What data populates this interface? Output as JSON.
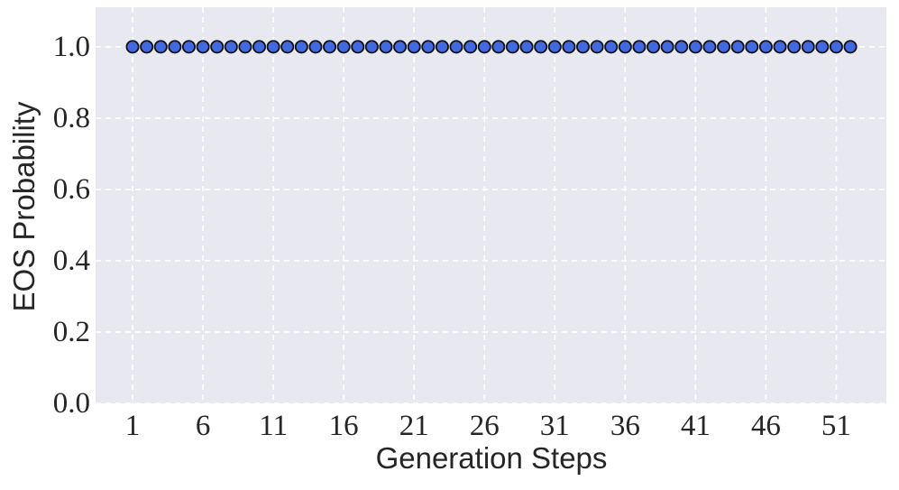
{
  "chart_data": {
    "type": "scatter",
    "title": "",
    "xlabel": "Generation Steps",
    "ylabel": "EOS Probability",
    "x": [
      1,
      2,
      3,
      4,
      5,
      6,
      7,
      8,
      9,
      10,
      11,
      12,
      13,
      14,
      15,
      16,
      17,
      18,
      19,
      20,
      21,
      22,
      23,
      24,
      25,
      26,
      27,
      28,
      29,
      30,
      31,
      32,
      33,
      34,
      35,
      36,
      37,
      38,
      39,
      40,
      41,
      42,
      43,
      44,
      45,
      46,
      47,
      48,
      49,
      50,
      51,
      52
    ],
    "y": [
      1.0,
      1.0,
      1.0,
      1.0,
      1.0,
      1.0,
      1.0,
      1.0,
      1.0,
      1.0,
      1.0,
      1.0,
      1.0,
      1.0,
      1.0,
      1.0,
      1.0,
      1.0,
      1.0,
      1.0,
      1.0,
      1.0,
      1.0,
      1.0,
      1.0,
      1.0,
      1.0,
      1.0,
      1.0,
      1.0,
      1.0,
      1.0,
      1.0,
      1.0,
      1.0,
      1.0,
      1.0,
      1.0,
      1.0,
      1.0,
      1.0,
      1.0,
      1.0,
      1.0,
      1.0,
      1.0,
      1.0,
      1.0,
      1.0,
      1.0,
      1.0,
      1.0
    ],
    "x_ticks": [
      1,
      6,
      11,
      16,
      21,
      26,
      31,
      36,
      41,
      46,
      51
    ],
    "y_ticks": [
      0.0,
      0.2,
      0.4,
      0.6,
      0.8,
      1.0
    ],
    "xlim": [
      -1.63,
      54.56
    ],
    "ylim": [
      0,
      1.111
    ],
    "grid": true,
    "legend": false,
    "colors": {
      "marker_fill": "#4169E1",
      "marker_edge": "#111111",
      "plot_bg": "#E8E8F1",
      "grid": "#FFFFFF",
      "text": "#262626"
    }
  }
}
